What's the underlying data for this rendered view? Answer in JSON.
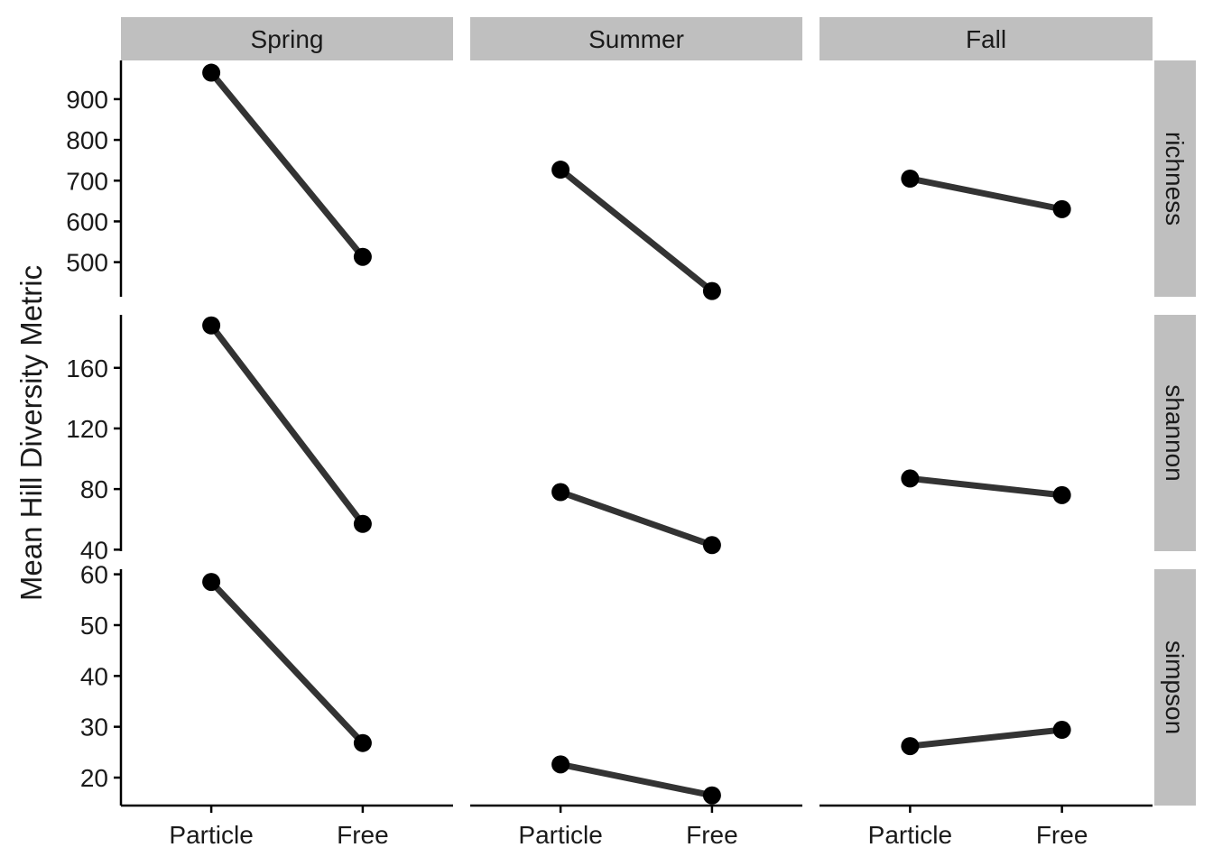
{
  "chart_data": {
    "type": "line",
    "ylabel": "Mean Hill Diversity Metric",
    "xlabel": "",
    "grid": false,
    "x_categories": [
      "Particle",
      "Free"
    ],
    "columns": [
      "Spring",
      "Summer",
      "Fall"
    ],
    "rows": [
      {
        "label": "richness",
        "ylim": [
          415,
          995
        ],
        "yticks": [
          500,
          600,
          700,
          800,
          900
        ],
        "values": {
          "Spring": [
            965,
            513
          ],
          "Summer": [
            727,
            429
          ],
          "Fall": [
            705,
            630
          ]
        }
      },
      {
        "label": "shannon",
        "ylim": [
          39,
          195
        ],
        "yticks": [
          40,
          80,
          120,
          160
        ],
        "values": {
          "Spring": [
            188,
            57
          ],
          "Summer": [
            78,
            43
          ],
          "Fall": [
            87,
            76
          ]
        }
      },
      {
        "label": "simpson",
        "ylim": [
          14.5,
          61
        ],
        "yticks": [
          20,
          30,
          40,
          50,
          60
        ],
        "values": {
          "Spring": [
            58.5,
            26.8
          ],
          "Summer": [
            22.6,
            16.5
          ],
          "Fall": [
            26.2,
            29.4
          ]
        }
      }
    ],
    "colors": {
      "line": "#333333",
      "point": "#000000",
      "strip": "#bfbfbf"
    }
  }
}
